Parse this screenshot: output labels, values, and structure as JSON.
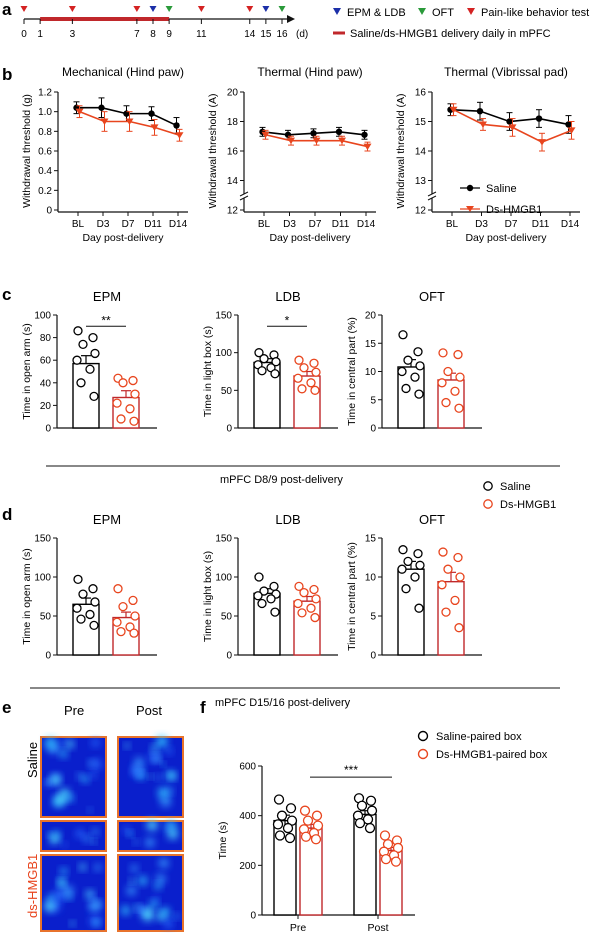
{
  "colors": {
    "saline": "#000000",
    "dshmgb1": "#e8451e",
    "bar_red": "#c0282b",
    "heat_bg": "#0a1fcc",
    "heat_border": "#e8732c"
  },
  "panel_labels": {
    "a": "a",
    "b": "b",
    "c": "c",
    "d": "d",
    "e": "e",
    "f": "f"
  },
  "timeline": {
    "days": [
      "0",
      "1",
      "3",
      "7",
      "8",
      "9",
      "11",
      "14",
      "15",
      "16"
    ],
    "unit": "(d)",
    "legend": {
      "epm_ldb": "EPM & LDB",
      "oft": "OFT",
      "pain": "Pain-like behavior test",
      "delivery": "Saline/ds-HMGB1 delivery daily in mPFC"
    },
    "markers": {
      "pain_days": [
        0,
        3,
        7,
        11,
        14
      ],
      "epm_ldb_days": [
        8,
        15
      ],
      "oft_days": [
        9,
        16
      ],
      "delivery_range": [
        1,
        9
      ]
    }
  },
  "legend_b": {
    "saline": "Saline",
    "dshmgb1": "Ds-HMGB1"
  },
  "legend_cd": {
    "saline": "Saline",
    "dshmgb1": "Ds-HMGB1"
  },
  "legend_f": {
    "saline": "Saline-paired box",
    "dshmgb1": "Ds-HMGB1-paired box"
  },
  "group_label_c": "mPFC    D8/9 post-delivery",
  "group_label_d": "mPFC    D15/16 post-delivery",
  "heatmap": {
    "col_pre": "Pre",
    "col_post": "Post",
    "row_saline": "Saline",
    "row_ds": "ds-HMGB1"
  },
  "chart_data": [
    {
      "id": "b1",
      "type": "line",
      "title": "Mechanical  (Hind paw)",
      "xlabel": "Day post-delivery",
      "ylabel": "Withdrawal threshold (g)",
      "categories": [
        "BL",
        "D3",
        "D7",
        "D11",
        "D14"
      ],
      "ylim": [
        0,
        1.2
      ],
      "yticks": [
        "0",
        "0.2",
        "0.4",
        "0.6",
        "0.8",
        "1.0",
        "1.2"
      ],
      "series": [
        {
          "name": "Saline",
          "values": [
            1.04,
            1.04,
            0.98,
            0.98,
            0.86
          ],
          "err": [
            0.06,
            0.1,
            0.08,
            0.07,
            0.08
          ]
        },
        {
          "name": "Ds-HMGB1",
          "values": [
            1.0,
            0.9,
            0.9,
            0.84,
            0.76
          ],
          "err": [
            0.06,
            0.1,
            0.1,
            0.08,
            0.06
          ]
        }
      ]
    },
    {
      "id": "b2",
      "type": "line",
      "title": "Thermal (Hind paw)",
      "xlabel": "Day post-delivery",
      "ylabel": "Withdrawal threshold (A)",
      "categories": [
        "BL",
        "D3",
        "D7",
        "D11",
        "D14"
      ],
      "ylim": [
        12,
        20
      ],
      "ybreak": true,
      "yticks": [
        "12",
        "14",
        "16",
        "18",
        "20"
      ],
      "series": [
        {
          "name": "Saline",
          "values": [
            17.3,
            17.1,
            17.2,
            17.3,
            17.1
          ],
          "err": [
            0.3,
            0.3,
            0.3,
            0.3,
            0.3
          ]
        },
        {
          "name": "Ds-HMGB1",
          "values": [
            17.1,
            16.7,
            16.7,
            16.7,
            16.3
          ],
          "err": [
            0.3,
            0.3,
            0.3,
            0.3,
            0.3
          ]
        }
      ]
    },
    {
      "id": "b3",
      "type": "line",
      "title": "Thermal  (Vibrissal pad)",
      "xlabel": "Day post-delivery",
      "ylabel": "Withdrawal threshold (A)",
      "categories": [
        "BL",
        "D3",
        "D7",
        "D11",
        "D14"
      ],
      "ylim": [
        12,
        16
      ],
      "ybreak": true,
      "yticks": [
        "12",
        "13",
        "14",
        "15",
        "16"
      ],
      "series": [
        {
          "name": "Saline",
          "values": [
            15.4,
            15.35,
            15.0,
            15.1,
            14.9
          ],
          "err": [
            0.2,
            0.3,
            0.3,
            0.3,
            0.3
          ]
        },
        {
          "name": "Ds-HMGB1",
          "values": [
            15.4,
            14.9,
            14.8,
            14.3,
            14.7
          ],
          "err": [
            0.2,
            0.2,
            0.3,
            0.3,
            0.3
          ]
        }
      ]
    },
    {
      "id": "c1",
      "type": "bar",
      "title": "EPM",
      "ylabel": "Time in open arm (s)",
      "ylim": [
        0,
        100
      ],
      "yticks": [
        "0",
        "20",
        "40",
        "60",
        "80",
        "100"
      ],
      "sig": "**",
      "series": [
        {
          "name": "Saline",
          "value": 57,
          "err": 7,
          "points": [
            86,
            80,
            74,
            66,
            60,
            52,
            40,
            28
          ]
        },
        {
          "name": "Ds-HMGB1",
          "value": 27,
          "err": 6,
          "points": [
            44,
            42,
            40,
            30,
            22,
            17,
            8,
            6
          ]
        }
      ]
    },
    {
      "id": "c2",
      "type": "bar",
      "title": "LDB",
      "ylabel": "Time in light box (s)",
      "ylim": [
        0,
        150
      ],
      "yticks": [
        "0",
        "50",
        "100",
        "150"
      ],
      "sig": "*",
      "series": [
        {
          "name": "Saline",
          "value": 87,
          "err": 5,
          "points": [
            100,
            97,
            92,
            88,
            84,
            80,
            76,
            72
          ]
        },
        {
          "name": "Ds-HMGB1",
          "value": 69,
          "err": 6,
          "points": [
            90,
            86,
            80,
            74,
            66,
            60,
            52,
            50
          ]
        }
      ]
    },
    {
      "id": "c3",
      "type": "bar",
      "title": "OFT",
      "ylabel": "Time in central part (%)",
      "ylim": [
        0,
        20
      ],
      "yticks": [
        "0",
        "5",
        "10",
        "15",
        "20"
      ],
      "series": [
        {
          "name": "Saline",
          "value": 10.8,
          "err": 1.3,
          "points": [
            16.5,
            13.5,
            12,
            11,
            10,
            9,
            7,
            6
          ]
        },
        {
          "name": "Ds-HMGB1",
          "value": 8.5,
          "err": 1.2,
          "points": [
            13.3,
            13,
            10,
            9,
            8,
            6.5,
            4.5,
            3.5
          ]
        }
      ]
    },
    {
      "id": "d1",
      "type": "bar",
      "title": "EPM",
      "ylabel": "Time in open arm (s)",
      "ylim": [
        0,
        150
      ],
      "yticks": [
        "0",
        "50",
        "100",
        "150"
      ],
      "series": [
        {
          "name": "Saline",
          "value": 65,
          "err": 8,
          "points": [
            97,
            85,
            78,
            68,
            60,
            52,
            46,
            38
          ]
        },
        {
          "name": "Ds-HMGB1",
          "value": 48,
          "err": 7,
          "points": [
            85,
            70,
            62,
            50,
            42,
            36,
            30,
            28
          ]
        }
      ]
    },
    {
      "id": "d2",
      "type": "bar",
      "title": "LDB",
      "ylabel": "Time in light box (s)",
      "ylim": [
        0,
        150
      ],
      "yticks": [
        "0",
        "50",
        "100",
        "150"
      ],
      "series": [
        {
          "name": "Saline",
          "value": 79,
          "err": 6,
          "points": [
            100,
            88,
            82,
            78,
            76,
            72,
            66,
            55
          ]
        },
        {
          "name": "Ds-HMGB1",
          "value": 69,
          "err": 6,
          "points": [
            88,
            84,
            80,
            72,
            66,
            60,
            54,
            48
          ]
        }
      ]
    },
    {
      "id": "d3",
      "type": "bar",
      "title": "OFT",
      "ylabel": "Time in central part (%)",
      "ylim": [
        0,
        15
      ],
      "yticks": [
        "0",
        "5",
        "10",
        "15"
      ],
      "series": [
        {
          "name": "Saline",
          "value": 11,
          "err": 1,
          "points": [
            13.5,
            13,
            12,
            11.5,
            11,
            10,
            8.5,
            6
          ]
        },
        {
          "name": "Ds-HMGB1",
          "value": 9.4,
          "err": 1.2,
          "points": [
            13.2,
            12.5,
            11,
            10,
            9,
            7,
            5.5,
            3.5
          ]
        }
      ]
    },
    {
      "id": "f",
      "type": "bar",
      "ylabel": "Time (s)",
      "categories": [
        "Pre",
        "Post"
      ],
      "ylim": [
        0,
        600
      ],
      "yticks": [
        "0",
        "200",
        "400",
        "600"
      ],
      "sig": "***",
      "series": [
        {
          "name": "Saline-paired box",
          "values": [
            380,
            405
          ],
          "err": [
            22,
            15
          ],
          "points": [
            [
              465,
              430,
              400,
              380,
              365,
              350,
              320,
              310
            ],
            [
              470,
              460,
              440,
              420,
              400,
              385,
              370,
              350
            ]
          ]
        },
        {
          "name": "Ds-HMGB1-paired box",
          "values": [
            350,
            260
          ],
          "err": [
            15,
            12
          ],
          "points": [
            [
              420,
              400,
              380,
              360,
              345,
              330,
              315,
              305
            ],
            [
              320,
              300,
              285,
              270,
              255,
              240,
              225,
              215
            ]
          ]
        }
      ]
    }
  ]
}
